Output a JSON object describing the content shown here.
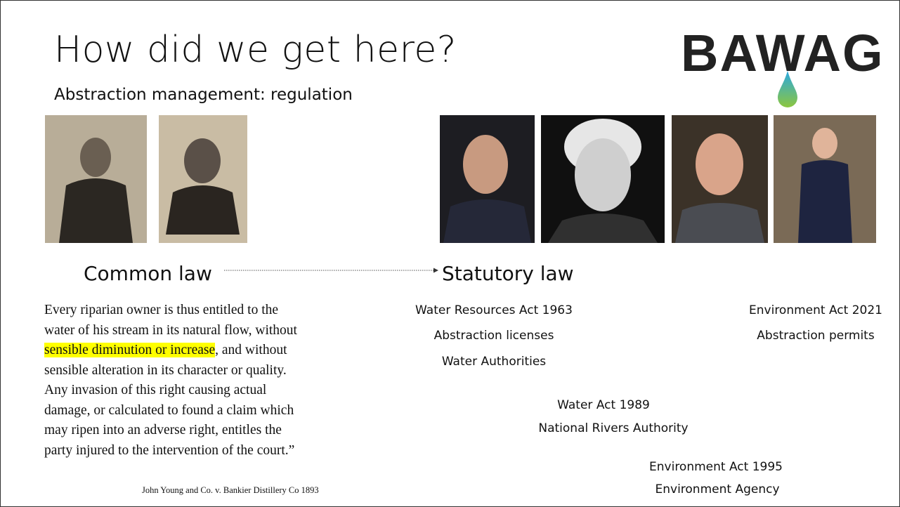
{
  "title": "How did we get here?",
  "subtitle": "Abstraction management: regulation",
  "logo": "BAWAG",
  "common_law": {
    "heading": "Common law",
    "quote": [
      "Every riparian owner is thus entitled to the",
      "water of his stream in its natural flow, without",
      [
        "sensible diminution or increase",
        ", and without"
      ],
      "sensible alteration in its character or quality.",
      "Any invasion of this right causing actual",
      "damage, or calculated to found a claim which",
      "may ripen into an adverse right, entitles the",
      "party injured to the intervention of the court.”"
    ],
    "citation": "John Young and Co. v. Bankier Distillery Co 1893"
  },
  "statutory_law": {
    "heading": "Statutory law",
    "acts": [
      {
        "name": "Water Resources Act 1963",
        "details": [
          "Abstraction licenses",
          "Water Authorities"
        ]
      },
      {
        "name": "Environment Act 2021",
        "details": [
          "Abstraction permits"
        ]
      },
      {
        "name": "Water Act 1989",
        "details": [
          "National Rivers Authority"
        ]
      },
      {
        "name": "Environment  Act 1995",
        "details": [
          "Environment Agency"
        ]
      }
    ]
  }
}
